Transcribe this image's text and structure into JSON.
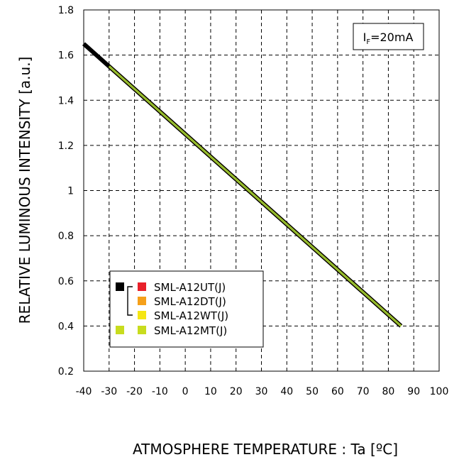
{
  "chart_data": {
    "type": "line",
    "title": "",
    "xlabel": "ATMOSPHERE TEMPERATURE : Ta [ºC]",
    "ylabel": "RELATIVE LUMINOUS INTENSITY [a.u.]",
    "xlim": [
      -40,
      100
    ],
    "ylim": [
      0.2,
      1.8
    ],
    "x_ticks": [
      -40,
      -30,
      -20,
      -10,
      0,
      10,
      20,
      30,
      40,
      50,
      60,
      70,
      80,
      90,
      100
    ],
    "y_ticks": [
      0.2,
      0.4,
      0.6,
      0.8,
      1,
      1.2,
      1.4,
      1.6,
      1.8
    ],
    "grid": true,
    "annotation": {
      "prefix": "I",
      "subscript": "F",
      "suffix": "=20mA",
      "placement": "top-right"
    },
    "legend_placement": "bottom-left",
    "legend": [
      {
        "label": "SML-A12UT(J)",
        "color": "#e8202a",
        "group_color": "#000000"
      },
      {
        "label": "SML-A12DT(J)",
        "color": "#f5a01a",
        "group_color": "#000000"
      },
      {
        "label": "SML-A12WT(J)",
        "color": "#f5e614",
        "group_color": "#000000"
      },
      {
        "label": "SML-A12MT(J)",
        "color": "#c8dc1e",
        "group_color": "#c8dc1e"
      }
    ],
    "series": [
      {
        "name": "SML-A12UT(J) / SML-A12DT(J) / SML-A12WT(J)",
        "color": "#000000",
        "x": [
          -40,
          85
        ],
        "y": [
          1.65,
          0.4
        ]
      },
      {
        "name": "SML-A12MT(J)",
        "color": "#7ab03c",
        "x": [
          -30,
          85
        ],
        "y": [
          1.55,
          0.4
        ]
      }
    ]
  }
}
